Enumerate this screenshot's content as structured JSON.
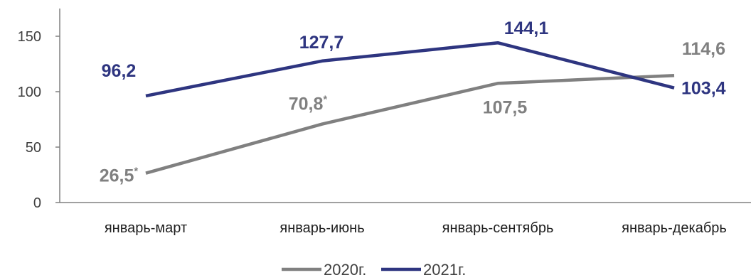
{
  "chart_data": {
    "type": "line",
    "title": "",
    "xlabel": "",
    "ylabel": "",
    "ylim": [
      0,
      175
    ],
    "yticks": [
      0,
      50,
      100,
      150
    ],
    "ytick_labels": [
      "0",
      "50",
      "100",
      "150"
    ],
    "grid": false,
    "legend_position": "bottom-center",
    "categories": [
      "январь-март",
      "январь-июнь",
      "январь-сентябрь",
      "январь-декабрь"
    ],
    "series": [
      {
        "name": "2020г.",
        "color": "#808080",
        "values": [
          26.5,
          70.8,
          107.5,
          114.6
        ],
        "labels": [
          "26,5",
          "70,8",
          "107,5",
          "114,6"
        ],
        "label_marks": [
          "*",
          "*",
          "",
          ""
        ]
      },
      {
        "name": "2021г.",
        "color": "#2e3580",
        "values": [
          96.2,
          127.7,
          144.1,
          103.4
        ],
        "labels": [
          "96,2",
          "127,7",
          "144,1",
          "103,4"
        ],
        "label_marks": [
          "",
          "",
          "",
          ""
        ]
      }
    ]
  }
}
